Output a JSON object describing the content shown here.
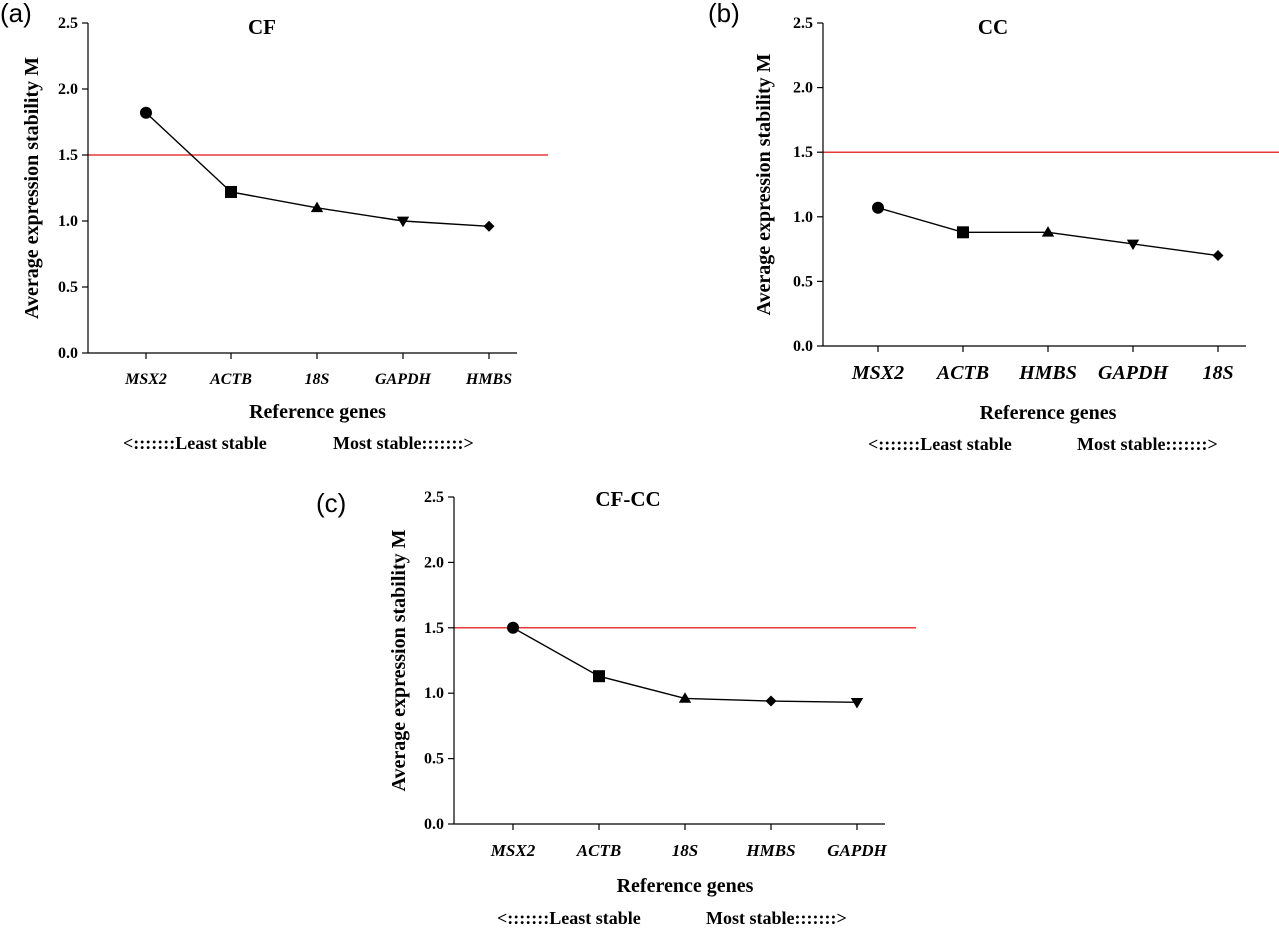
{
  "chart_data": [
    {
      "panel": "(a)",
      "type": "line",
      "title": "CF",
      "xlabel": "Reference genes",
      "ylabel": "Average expression stability M",
      "categories": [
        "MSX2",
        "ACTB",
        "18S",
        "GAPDH",
        "HMBS"
      ],
      "values": [
        1.82,
        1.22,
        1.1,
        1.0,
        0.96
      ],
      "markers": [
        "circle",
        "square",
        "triangle-up",
        "triangle-down",
        "diamond"
      ],
      "ylim": [
        0,
        2.5
      ],
      "yticks": [
        "0.0",
        "0.5",
        "1.0",
        "1.5",
        "2.0",
        "2.5"
      ],
      "threshold": 1.5,
      "stability_left": "<:::::::Least stable",
      "stability_right": "Most stable:::::::>",
      "grid": false,
      "colors": {
        "line": "#000000",
        "threshold": "#e8393a"
      }
    },
    {
      "panel": "(b)",
      "type": "line",
      "title": "CC",
      "xlabel": "Reference genes",
      "ylabel": "Average expression stability M",
      "categories": [
        "MSX2",
        "ACTB",
        "HMBS",
        "GAPDH",
        "18S"
      ],
      "values": [
        1.07,
        0.88,
        0.88,
        0.79,
        0.7
      ],
      "markers": [
        "circle",
        "square",
        "triangle-up",
        "triangle-down",
        "diamond"
      ],
      "ylim": [
        0,
        2.5
      ],
      "yticks": [
        "0.0",
        "0.5",
        "1.0",
        "1.5",
        "2.0",
        "2.5"
      ],
      "threshold": 1.5,
      "stability_left": "<:::::::Least stable",
      "stability_right": "Most stable:::::::>",
      "grid": false,
      "colors": {
        "line": "#000000",
        "threshold": "#e8393a"
      }
    },
    {
      "panel": "(c)",
      "type": "line",
      "title": "CF-CC",
      "xlabel": "Reference genes",
      "ylabel": "Average expression stability M",
      "categories": [
        "MSX2",
        "ACTB",
        "18S",
        "HMBS",
        "GAPDH"
      ],
      "values": [
        1.5,
        1.13,
        0.96,
        0.94,
        0.93
      ],
      "markers": [
        "circle",
        "square",
        "triangle-up",
        "diamond",
        "triangle-down"
      ],
      "ylim": [
        0,
        2.5
      ],
      "yticks": [
        "0.0",
        "0.5",
        "1.0",
        "1.5",
        "2.0",
        "2.5"
      ],
      "threshold": 1.5,
      "stability_left": "<:::::::Least stable",
      "stability_right": "Most stable:::::::>",
      "grid": false,
      "colors": {
        "line": "#000000",
        "threshold": "#e8393a"
      }
    }
  ]
}
